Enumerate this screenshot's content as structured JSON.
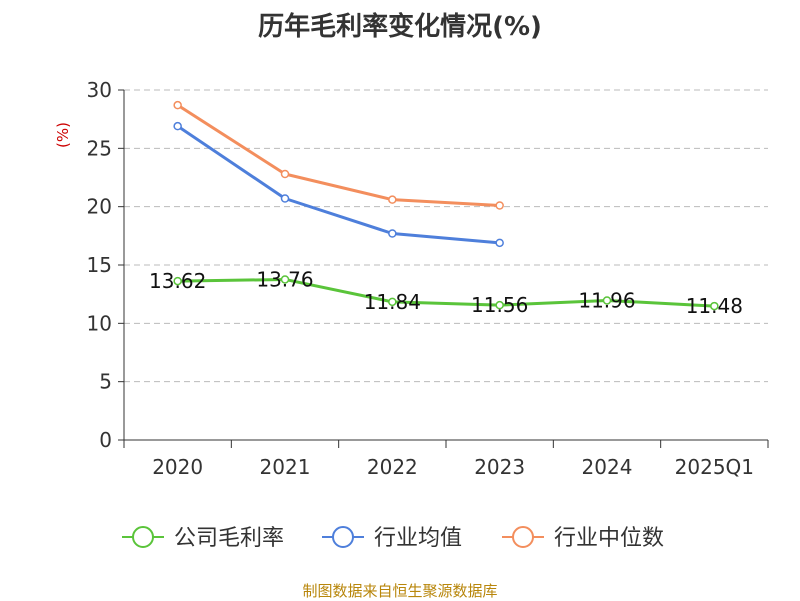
{
  "chart_data": {
    "type": "line",
    "title": "历年毛利率变化情况(%)",
    "ylabel": "(%)",
    "xlabel": "",
    "categories": [
      "2020",
      "2021",
      "2022",
      "2023",
      "2024",
      "2025Q1"
    ],
    "ylim": [
      0,
      30
    ],
    "yticks": [
      0,
      5,
      10,
      15,
      20,
      25,
      30
    ],
    "grid": true,
    "legend_position": "bottom",
    "series": [
      {
        "name": "公司毛利率",
        "color": "#5ac43a",
        "values": [
          13.62,
          13.76,
          11.84,
          11.56,
          11.96,
          11.48
        ],
        "labels": [
          "13.62",
          "13.76",
          "11.84",
          "11.56",
          "11.96",
          "11.48"
        ]
      },
      {
        "name": "行业均值",
        "color": "#4e7fdb",
        "values": [
          26.9,
          20.7,
          17.7,
          16.9,
          null,
          null
        ]
      },
      {
        "name": "行业中位数",
        "color": "#f38e5d",
        "values": [
          28.7,
          22.8,
          20.6,
          20.1,
          null,
          null
        ]
      }
    ]
  },
  "colors": {
    "title": "#333333",
    "ylabel": "#cc0000",
    "source": "#b8860b",
    "grid": "#bbbbbb",
    "axis": "#333333"
  },
  "source": "制图数据来自恒生聚源数据库"
}
